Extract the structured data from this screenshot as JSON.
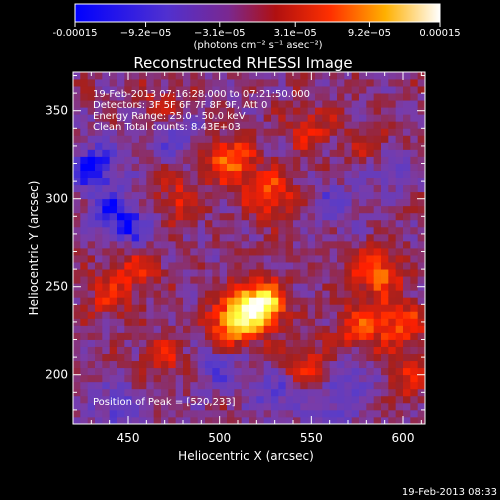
{
  "colorbar": {
    "tick_labels": [
      "-0.00015",
      "−9.2e−05",
      "−3.1e−05",
      "3.1e−05",
      "9.2e−05",
      "0.00015"
    ],
    "tick_values": [
      -0.00015,
      -9.2e-05,
      -3.1e-05,
      3.1e-05,
      9.2e-05,
      0.00015
    ],
    "range": [
      -0.00015,
      0.00015
    ],
    "unit_label": "(photons cm⁻² s⁻¹ asec⁻²)"
  },
  "plot": {
    "title": "Reconstructed RHESSI Image",
    "annotations": [
      "19-Feb-2013 07:16:28.000 to 07:21:50.000",
      "Detectors: 3F 5F 6F 7F 8F 9F, Att 0",
      "Energy Range: 25.0 - 50.0 keV",
      "Clean    Total counts: 8.43E+03"
    ],
    "peak_label": "Position of Peak = [520,233]"
  },
  "footer": {
    "timestamp": "19-Feb-2013 08:33"
  },
  "chart_data": {
    "type": "heatmap",
    "title": "Reconstructed RHESSI Image",
    "xlabel": "Heliocentric X (arcsec)",
    "ylabel": "Heliocentric Y (arcsec)",
    "xlim": [
      420,
      612
    ],
    "ylim": [
      172,
      372
    ],
    "x_ticks": [
      450,
      500,
      550,
      600
    ],
    "y_ticks": [
      200,
      250,
      300,
      350
    ],
    "value_range": [
      -0.00015,
      0.00015
    ],
    "peak_position": [
      520,
      233
    ],
    "colormap": [
      "#0000ff",
      "#5a3cc8",
      "#7a3ca8",
      "#a02020",
      "#ff2000",
      "#ff9000",
      "#ffff40",
      "#ffffff"
    ],
    "hotspots": [
      {
        "x": 522,
        "y": 240,
        "intensity": 1.0
      },
      {
        "x": 507,
        "y": 230,
        "intensity": 0.7
      },
      {
        "x": 506,
        "y": 322,
        "intensity": 0.55
      },
      {
        "x": 528,
        "y": 302,
        "intensity": 0.5
      },
      {
        "x": 585,
        "y": 258,
        "intensity": 0.55
      },
      {
        "x": 598,
        "y": 230,
        "intensity": 0.45
      },
      {
        "x": 575,
        "y": 225,
        "intensity": 0.4
      },
      {
        "x": 455,
        "y": 262,
        "intensity": 0.35
      },
      {
        "x": 440,
        "y": 245,
        "intensity": 0.3
      },
      {
        "x": 478,
        "y": 300,
        "intensity": 0.3
      },
      {
        "x": 550,
        "y": 340,
        "intensity": 0.3
      },
      {
        "x": 585,
        "y": 330,
        "intensity": 0.3
      },
      {
        "x": 545,
        "y": 205,
        "intensity": 0.35
      },
      {
        "x": 470,
        "y": 210,
        "intensity": 0.25
      },
      {
        "x": 600,
        "y": 198,
        "intensity": 0.3
      },
      {
        "x": 470,
        "y": 355,
        "intensity": 0.2
      }
    ],
    "coldspots": [
      {
        "x": 432,
        "y": 318,
        "intensity": -0.5
      },
      {
        "x": 442,
        "y": 292,
        "intensity": -0.35
      },
      {
        "x": 452,
        "y": 282,
        "intensity": -0.3
      },
      {
        "x": 478,
        "y": 335,
        "intensity": -0.25
      },
      {
        "x": 592,
        "y": 320,
        "intensity": -0.3
      },
      {
        "x": 562,
        "y": 296,
        "intensity": -0.25
      },
      {
        "x": 500,
        "y": 205,
        "intensity": -0.25
      },
      {
        "x": 530,
        "y": 190,
        "intensity": -0.3
      },
      {
        "x": 575,
        "y": 198,
        "intensity": -0.25
      },
      {
        "x": 445,
        "y": 182,
        "intensity": -0.3
      },
      {
        "x": 560,
        "y": 180,
        "intensity": -0.25
      }
    ]
  }
}
